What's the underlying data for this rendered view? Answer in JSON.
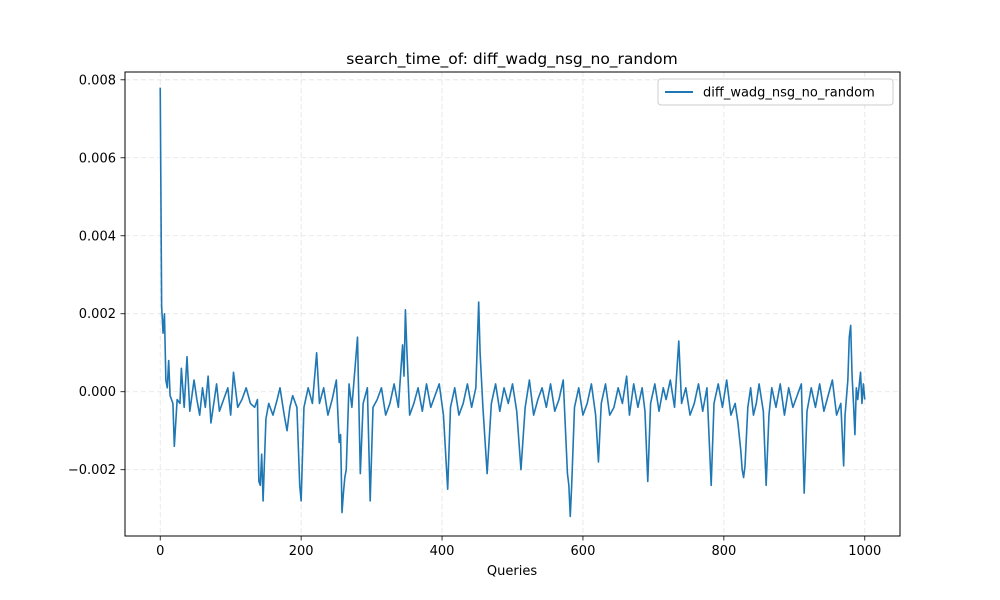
{
  "chart_data": {
    "type": "line",
    "title": "search_time_of: diff_wadg_nsg_no_random",
    "xlabel": "Queries",
    "ylabel": "",
    "xlim": [
      -50,
      1050
    ],
    "ylim": [
      -0.0037,
      0.0082
    ],
    "xticks": [
      0,
      200,
      400,
      600,
      800,
      1000
    ],
    "xtick_labels": [
      "0",
      "200",
      "400",
      "600",
      "800",
      "1000"
    ],
    "yticks": [
      -0.002,
      0.0,
      0.002,
      0.004,
      0.006,
      0.008
    ],
    "ytick_labels": [
      "−0.002",
      "0.000",
      "0.002",
      "0.004",
      "0.006",
      "0.008"
    ],
    "grid": true,
    "legend_position": "top-right",
    "series": [
      {
        "name": "diff_wadg_nsg_no_random",
        "color": "#1f77b4",
        "points": [
          [
            0,
            0.0078
          ],
          [
            2,
            0.0022
          ],
          [
            4,
            0.0015
          ],
          [
            6,
            0.002
          ],
          [
            8,
            0.0003
          ],
          [
            10,
            0.0001
          ],
          [
            12,
            0.0008
          ],
          [
            14,
            -0.0001
          ],
          [
            18,
            -0.0003
          ],
          [
            20,
            -0.0014
          ],
          [
            24,
            -0.0002
          ],
          [
            28,
            -0.0003
          ],
          [
            30,
            0.0006
          ],
          [
            34,
            -0.0004
          ],
          [
            38,
            0.0009
          ],
          [
            42,
            -0.0005
          ],
          [
            48,
            0.0003
          ],
          [
            52,
            -0.0002
          ],
          [
            56,
            -0.0006
          ],
          [
            60,
            0.0001
          ],
          [
            64,
            -0.0004
          ],
          [
            68,
            0.0004
          ],
          [
            72,
            -0.0008
          ],
          [
            76,
            -0.0003
          ],
          [
            80,
            0.0002
          ],
          [
            84,
            -0.0005
          ],
          [
            90,
            -0.0002
          ],
          [
            96,
            0.0001
          ],
          [
            100,
            -0.0006
          ],
          [
            104,
            0.0005
          ],
          [
            110,
            -0.0004
          ],
          [
            116,
            -0.0002
          ],
          [
            122,
            0.0001
          ],
          [
            128,
            -0.0003
          ],
          [
            134,
            -0.0004
          ],
          [
            138,
            -0.0002
          ],
          [
            140,
            -0.0023
          ],
          [
            142,
            -0.0024
          ],
          [
            144,
            -0.0016
          ],
          [
            146,
            -0.0028
          ],
          [
            150,
            -0.0007
          ],
          [
            154,
            -0.0003
          ],
          [
            160,
            -0.0006
          ],
          [
            166,
            -0.0002
          ],
          [
            170,
            0.0001
          ],
          [
            176,
            -0.0006
          ],
          [
            180,
            -0.001
          ],
          [
            184,
            -0.0004
          ],
          [
            188,
            -0.0001
          ],
          [
            194,
            -0.0004
          ],
          [
            198,
            -0.0024
          ],
          [
            200,
            -0.0028
          ],
          [
            204,
            -0.0004
          ],
          [
            210,
            0.0001
          ],
          [
            216,
            -0.0003
          ],
          [
            222,
            0.001
          ],
          [
            226,
            -0.0003
          ],
          [
            232,
            0.0001
          ],
          [
            238,
            -0.0006
          ],
          [
            244,
            -0.0002
          ],
          [
            250,
            0.0003
          ],
          [
            254,
            -0.0013
          ],
          [
            256,
            -0.0011
          ],
          [
            258,
            -0.0031
          ],
          [
            260,
            -0.0026
          ],
          [
            262,
            -0.0022
          ],
          [
            264,
            -0.002
          ],
          [
            268,
            0.0002
          ],
          [
            272,
            -0.0004
          ],
          [
            280,
            0.0014
          ],
          [
            284,
            -0.0021
          ],
          [
            288,
            -0.0003
          ],
          [
            294,
            0.0001
          ],
          [
            298,
            -0.0028
          ],
          [
            302,
            -0.0004
          ],
          [
            308,
            -0.0002
          ],
          [
            314,
            0.0001
          ],
          [
            320,
            -0.0006
          ],
          [
            326,
            -0.0003
          ],
          [
            332,
            0.0002
          ],
          [
            338,
            -0.0004
          ],
          [
            344,
            0.0012
          ],
          [
            346,
            0.0004
          ],
          [
            348,
            0.0021
          ],
          [
            350,
            0.0011
          ],
          [
            354,
            -0.0006
          ],
          [
            360,
            -0.0003
          ],
          [
            366,
            0.0001
          ],
          [
            372,
            -0.0005
          ],
          [
            378,
            0.0002
          ],
          [
            384,
            -0.0004
          ],
          [
            390,
            -0.0001
          ],
          [
            396,
            0.0002
          ],
          [
            402,
            -0.0006
          ],
          [
            408,
            -0.0025
          ],
          [
            412,
            -0.0004
          ],
          [
            418,
            0.0001
          ],
          [
            424,
            -0.0006
          ],
          [
            430,
            -0.0003
          ],
          [
            436,
            0.0002
          ],
          [
            442,
            -0.0004
          ],
          [
            448,
            0.0001
          ],
          [
            452,
            0.0023
          ],
          [
            454,
            0.001
          ],
          [
            458,
            -0.0004
          ],
          [
            464,
            -0.0021
          ],
          [
            470,
            -0.0003
          ],
          [
            476,
            0.0002
          ],
          [
            482,
            -0.0005
          ],
          [
            488,
            0.0001
          ],
          [
            494,
            -0.0003
          ],
          [
            500,
            0.0002
          ],
          [
            506,
            -0.0005
          ],
          [
            512,
            -0.002
          ],
          [
            518,
            -0.0004
          ],
          [
            524,
            0.0003
          ],
          [
            530,
            -0.0006
          ],
          [
            536,
            -0.0002
          ],
          [
            542,
            0.0001
          ],
          [
            548,
            -0.0004
          ],
          [
            554,
            0.0002
          ],
          [
            560,
            -0.0005
          ],
          [
            566,
            -0.0002
          ],
          [
            572,
            0.0003
          ],
          [
            578,
            -0.0021
          ],
          [
            580,
            -0.0024
          ],
          [
            582,
            -0.0032
          ],
          [
            584,
            -0.0024
          ],
          [
            588,
            -0.0004
          ],
          [
            594,
            0.0001
          ],
          [
            600,
            -0.0006
          ],
          [
            606,
            -0.0003
          ],
          [
            612,
            0.0002
          ],
          [
            618,
            -0.0006
          ],
          [
            622,
            -0.0018
          ],
          [
            626,
            -0.0003
          ],
          [
            632,
            0.0002
          ],
          [
            638,
            -0.0006
          ],
          [
            644,
            -0.0004
          ],
          [
            650,
            0.0001
          ],
          [
            656,
            -0.0003
          ],
          [
            662,
            0.0004
          ],
          [
            666,
            -0.0006
          ],
          [
            672,
            0.0002
          ],
          [
            678,
            -0.0004
          ],
          [
            684,
            0.0001
          ],
          [
            688,
            -0.0005
          ],
          [
            692,
            -0.0023
          ],
          [
            696,
            -0.0003
          ],
          [
            702,
            0.0002
          ],
          [
            708,
            -0.0005
          ],
          [
            714,
            0.0001
          ],
          [
            718,
            -0.0002
          ],
          [
            724,
            0.0003
          ],
          [
            730,
            -0.0004
          ],
          [
            736,
            0.0013
          ],
          [
            740,
            -0.0003
          ],
          [
            746,
            0.0001
          ],
          [
            752,
            -0.0006
          ],
          [
            758,
            -0.0003
          ],
          [
            764,
            0.0002
          ],
          [
            770,
            -0.0005
          ],
          [
            776,
            0.0001
          ],
          [
            782,
            -0.0024
          ],
          [
            786,
            -0.0003
          ],
          [
            792,
            0.0002
          ],
          [
            798,
            -0.0004
          ],
          [
            804,
            0.0003
          ],
          [
            810,
            -0.0006
          ],
          [
            816,
            -0.0003
          ],
          [
            820,
            -0.0008
          ],
          [
            824,
            -0.0015
          ],
          [
            826,
            -0.002
          ],
          [
            828,
            -0.0022
          ],
          [
            830,
            -0.0019
          ],
          [
            834,
            -0.0004
          ],
          [
            838,
            0.0001
          ],
          [
            842,
            -0.0006
          ],
          [
            846,
            -0.0003
          ],
          [
            850,
            0.0002
          ],
          [
            856,
            -0.0005
          ],
          [
            860,
            -0.0024
          ],
          [
            864,
            -0.0006
          ],
          [
            868,
            0.0001
          ],
          [
            874,
            -0.0004
          ],
          [
            880,
            0.0002
          ],
          [
            886,
            -0.0006
          ],
          [
            892,
            0.0001
          ],
          [
            898,
            -0.0004
          ],
          [
            904,
            -0.0001
          ],
          [
            910,
            0.0002
          ],
          [
            914,
            -0.0026
          ],
          [
            918,
            -0.0005
          ],
          [
            924,
            0.0001
          ],
          [
            930,
            -0.0004
          ],
          [
            936,
            0.0002
          ],
          [
            942,
            -0.0005
          ],
          [
            948,
            -0.0001
          ],
          [
            954,
            0.0003
          ],
          [
            960,
            -0.0006
          ],
          [
            966,
            -0.0003
          ],
          [
            970,
            -0.0019
          ],
          [
            972,
            -0.0006
          ],
          [
            976,
            0.0003
          ],
          [
            978,
            0.0014
          ],
          [
            980,
            0.0017
          ],
          [
            982,
            0.0004
          ],
          [
            984,
            -0.0003
          ],
          [
            986,
            -0.0011
          ],
          [
            988,
            0.0001
          ],
          [
            990,
            -0.0002
          ],
          [
            994,
            0.0005
          ],
          [
            996,
            -0.0003
          ],
          [
            998,
            0.0002
          ],
          [
            1000,
            -0.0002
          ]
        ]
      }
    ]
  }
}
